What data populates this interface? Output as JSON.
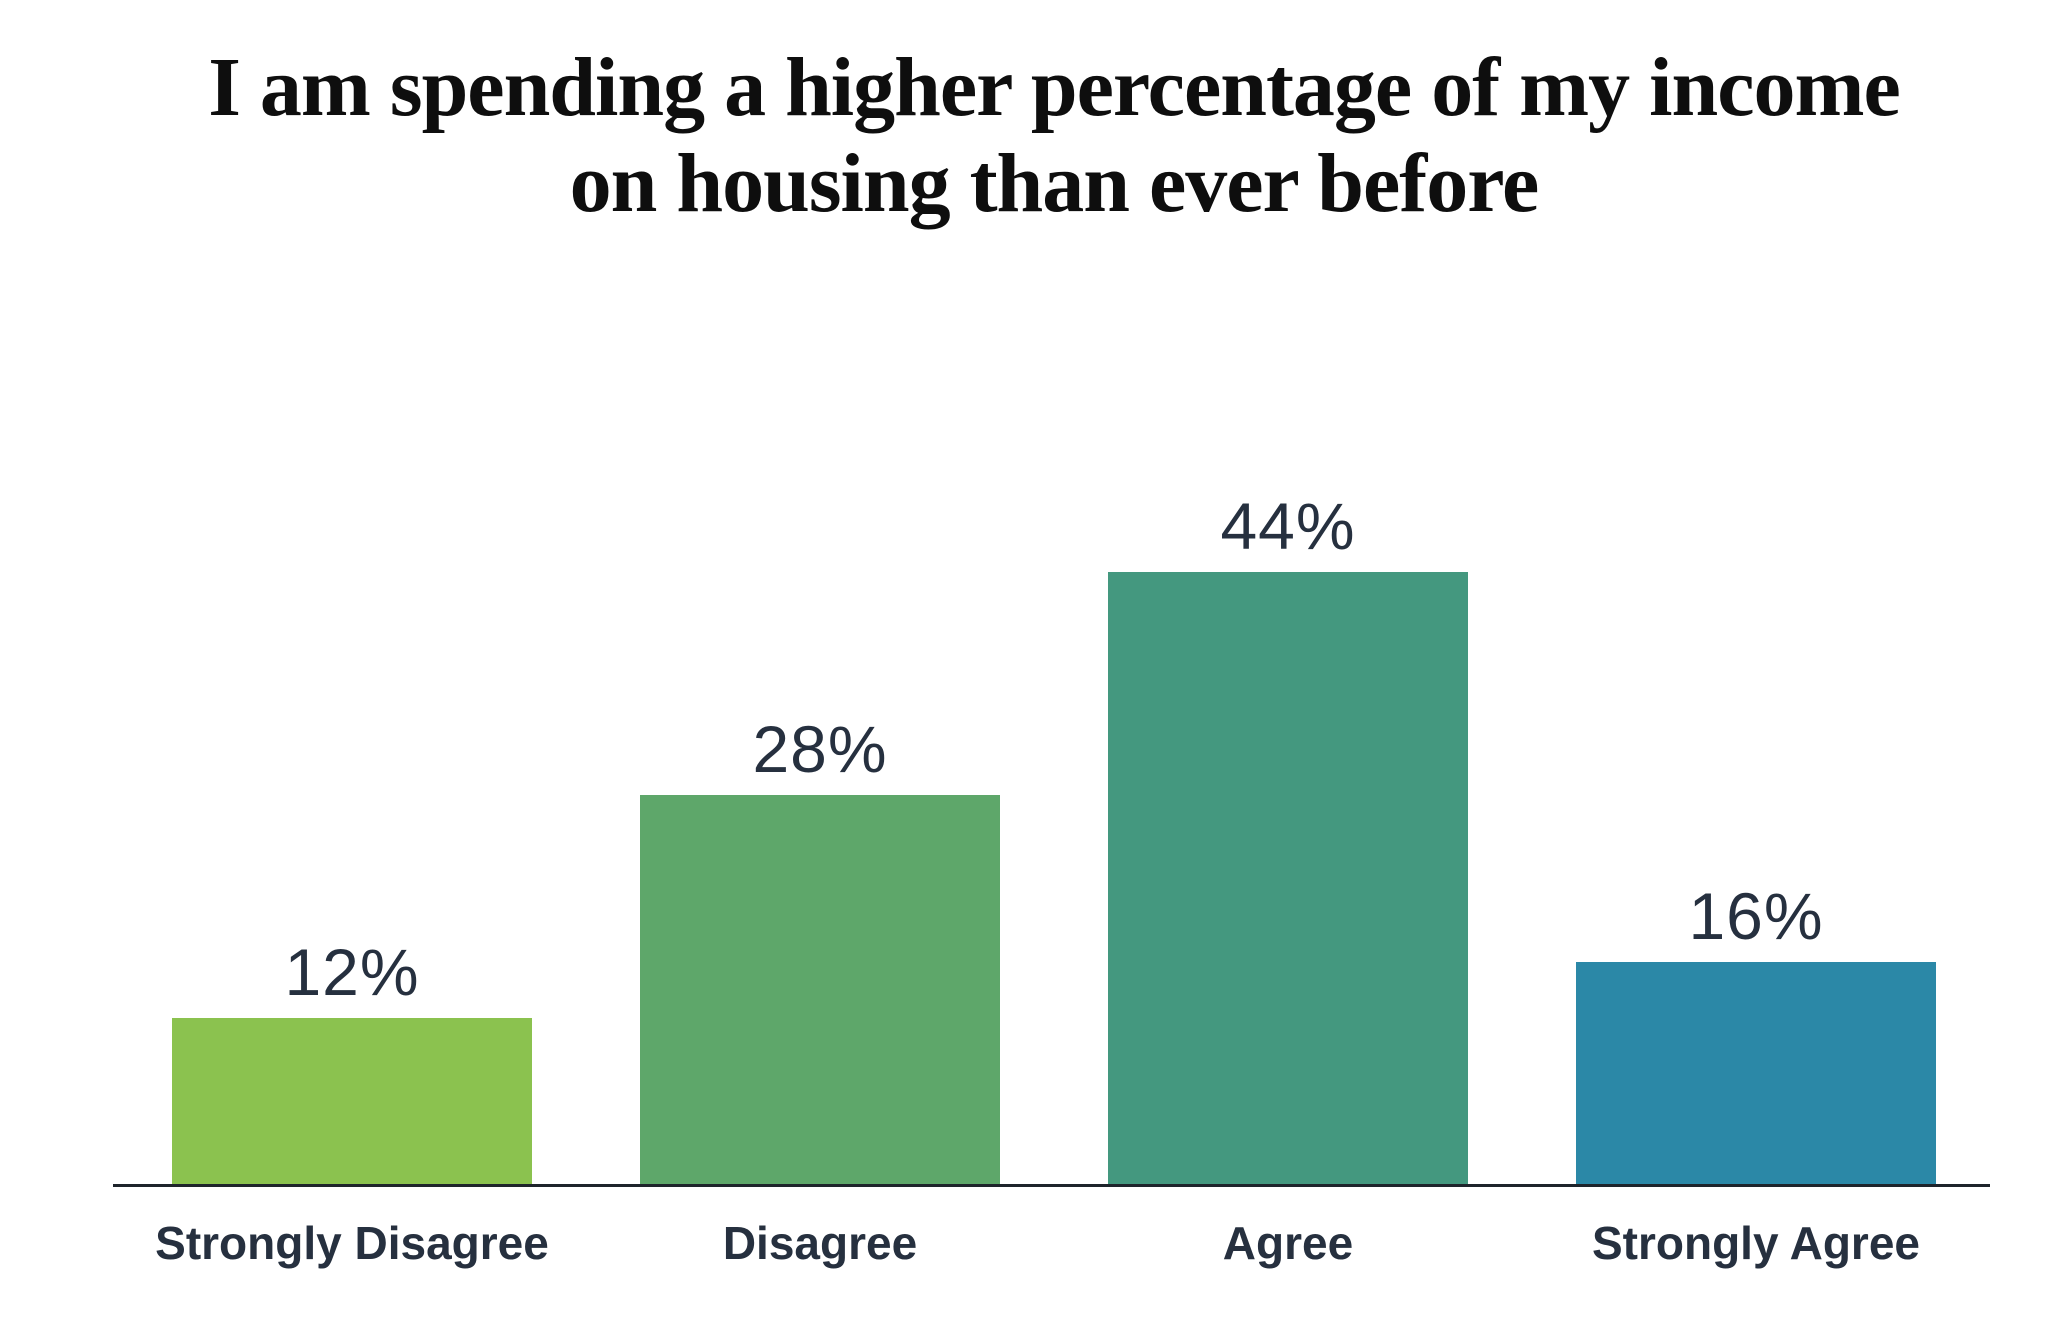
{
  "page": {
    "background": "#ffffff"
  },
  "header": {
    "title_line1": "I am spending a higher percentage of my income",
    "title_line2": "on housing than ever before"
  },
  "chart_data": {
    "type": "bar",
    "title": "I am spending a higher percentage of my income on housing than ever before",
    "categories": [
      "Strongly Disagree",
      "Disagree",
      "Agree",
      "Strongly Agree"
    ],
    "values": [
      12,
      28,
      44,
      16
    ],
    "value_labels": [
      "12%",
      "28%",
      "44%",
      "16%"
    ],
    "bar_colors": [
      "#8BC24F",
      "#5EA76A",
      "#44987F",
      "#2B88A7"
    ],
    "label_color": "#26303F",
    "axis_color": "#1E242B",
    "xlabel": "",
    "ylabel": "",
    "grid": false,
    "legend": false,
    "value_label_suffix": "%"
  }
}
